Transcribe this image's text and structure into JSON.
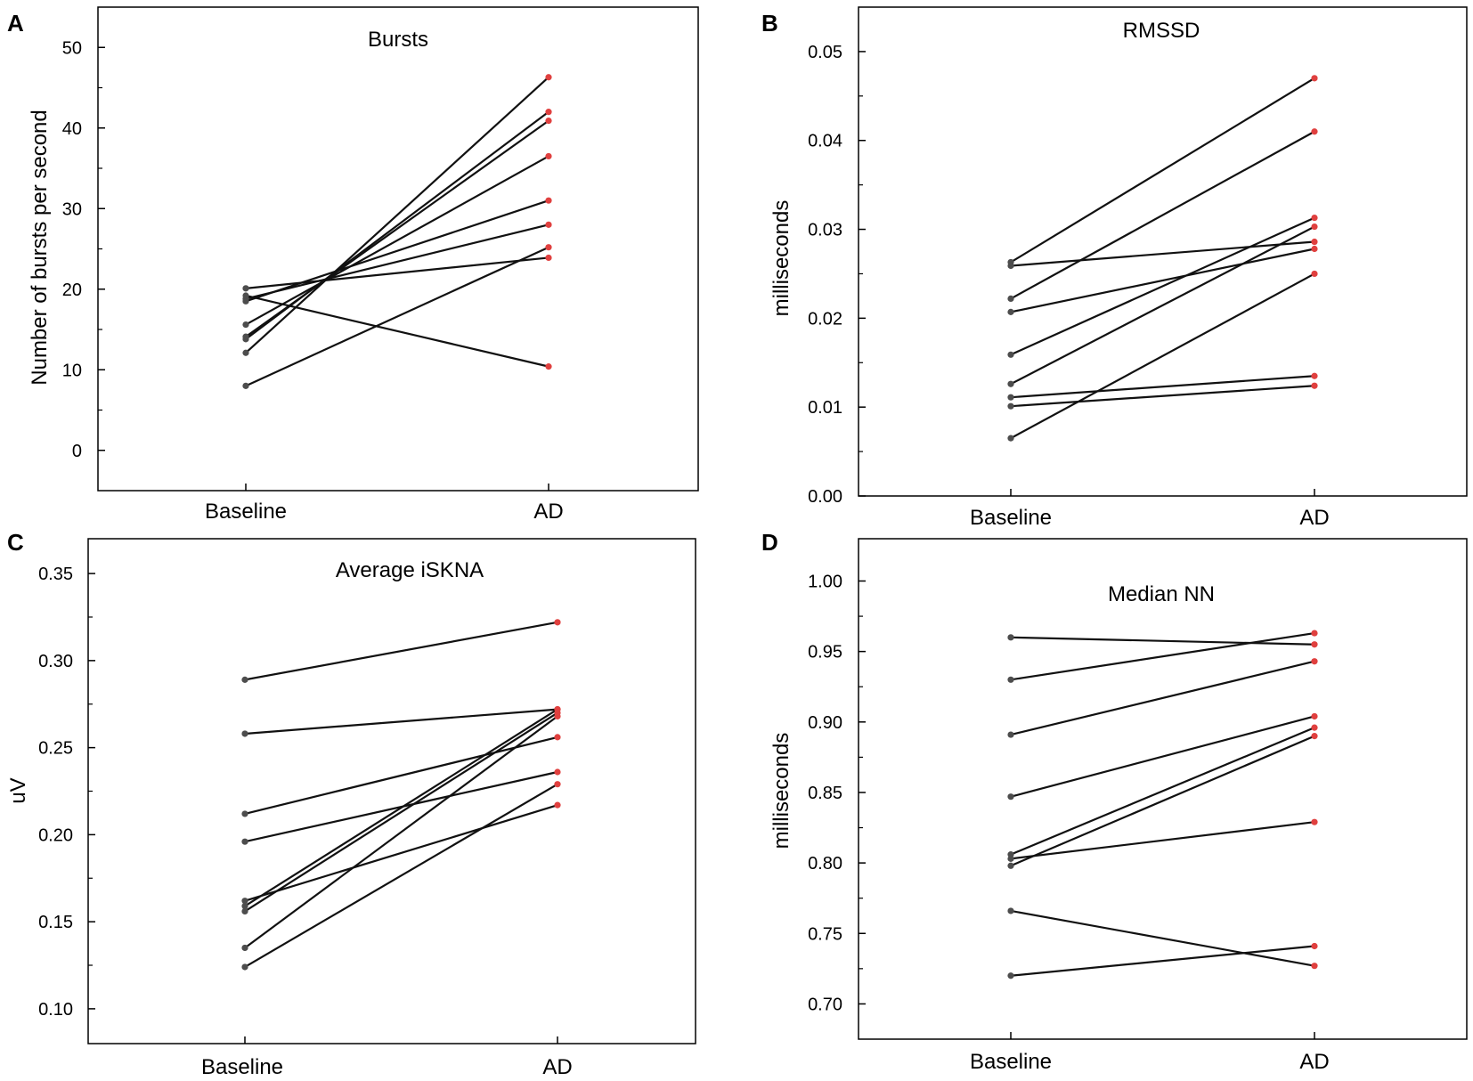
{
  "colors": {
    "baseline_point": "#4d4d4d",
    "ad_point": "#e0403f",
    "line": "#111111",
    "frame": "#000000"
  },
  "chart_data": [
    {
      "panel": "A",
      "type": "line",
      "title": "Bursts",
      "xlabel": "",
      "ylabel": "Number of bursts per second",
      "categories": [
        "Baseline",
        "AD"
      ],
      "ylim": [
        -5,
        55
      ],
      "yticks": [
        0,
        10,
        20,
        30,
        40,
        50
      ],
      "ytick_labels": [
        "0",
        "10",
        "20",
        "30",
        "40",
        "50"
      ],
      "pairs": [
        [
          8.0,
          25.2
        ],
        [
          12.1,
          46.3
        ],
        [
          13.8,
          42.0
        ],
        [
          14.1,
          40.9
        ],
        [
          15.6,
          36.5
        ],
        [
          18.5,
          31.0
        ],
        [
          18.8,
          28.0
        ],
        [
          19.2,
          10.4
        ],
        [
          20.1,
          23.9
        ]
      ]
    },
    {
      "panel": "B",
      "type": "line",
      "title": "RMSSD",
      "xlabel": "",
      "ylabel": "milliseconds",
      "categories": [
        "Baseline",
        "AD"
      ],
      "ylim": [
        0.0,
        0.055
      ],
      "yticks": [
        0.0,
        0.01,
        0.02,
        0.03,
        0.04,
        0.05
      ],
      "ytick_labels": [
        "0.00",
        "0.01",
        "0.02",
        "0.03",
        "0.04",
        "0.05"
      ],
      "pairs": [
        [
          0.0065,
          0.025
        ],
        [
          0.0101,
          0.0124
        ],
        [
          0.0111,
          0.0135
        ],
        [
          0.0126,
          0.0303
        ],
        [
          0.0159,
          0.0313
        ],
        [
          0.0207,
          0.0278
        ],
        [
          0.0222,
          0.041
        ],
        [
          0.0259,
          0.0286
        ],
        [
          0.0263,
          0.047
        ]
      ]
    },
    {
      "panel": "C",
      "type": "line",
      "title": "Average iSKNA",
      "xlabel": "",
      "ylabel": "uV",
      "categories": [
        "Baseline",
        "AD"
      ],
      "ylim": [
        0.08,
        0.37
      ],
      "yticks": [
        0.1,
        0.15,
        0.2,
        0.25,
        0.3,
        0.35
      ],
      "ytick_labels": [
        "0.10",
        "0.15",
        "0.20",
        "0.25",
        "0.30",
        "0.35"
      ],
      "pairs": [
        [
          0.124,
          0.229
        ],
        [
          0.135,
          0.268
        ],
        [
          0.156,
          0.27
        ],
        [
          0.159,
          0.272
        ],
        [
          0.162,
          0.217
        ],
        [
          0.196,
          0.236
        ],
        [
          0.212,
          0.256
        ],
        [
          0.258,
          0.272
        ],
        [
          0.289,
          0.322
        ]
      ]
    },
    {
      "panel": "D",
      "type": "line",
      "title": "Median NN",
      "xlabel": "",
      "ylabel": "milliseconds",
      "categories": [
        "Baseline",
        "AD"
      ],
      "ylim": [
        0.675,
        1.03
      ],
      "yticks": [
        0.7,
        0.75,
        0.8,
        0.85,
        0.9,
        0.95,
        1.0
      ],
      "ytick_labels": [
        "0.70",
        "0.75",
        "0.80",
        "0.85",
        "0.90",
        "0.95",
        "1.00"
      ],
      "pairs": [
        [
          0.72,
          0.741
        ],
        [
          0.766,
          0.727
        ],
        [
          0.798,
          0.89
        ],
        [
          0.803,
          0.829
        ],
        [
          0.806,
          0.896
        ],
        [
          0.847,
          0.904
        ],
        [
          0.891,
          0.943
        ],
        [
          0.93,
          0.963
        ],
        [
          0.96,
          0.955
        ]
      ]
    }
  ]
}
